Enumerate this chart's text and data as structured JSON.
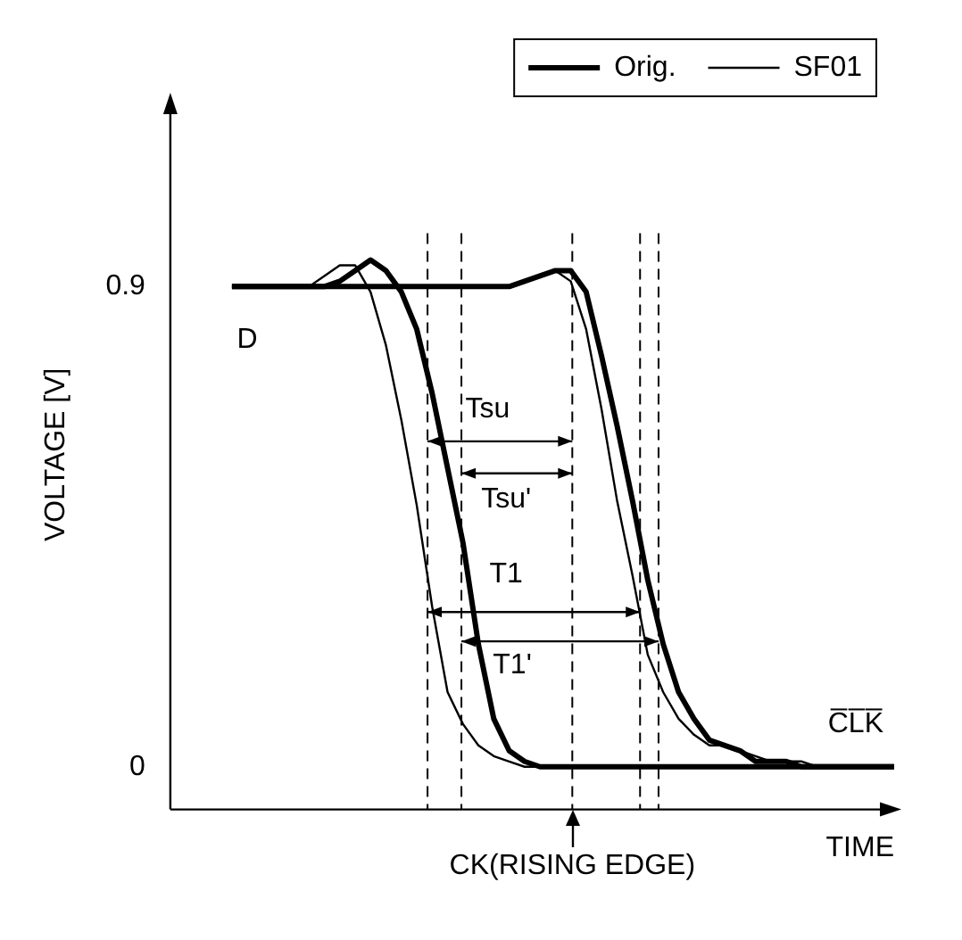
{
  "chart_data": {
    "type": "line",
    "xlabel": "TIME",
    "ylabel": "VOLTAGE [V]",
    "categories": [
      null,
      null,
      null,
      null,
      null,
      null,
      null,
      null,
      null,
      null,
      null,
      null,
      null,
      null,
      null,
      null,
      null,
      null,
      null,
      null,
      null,
      null,
      null,
      null,
      null,
      null,
      null,
      null,
      null,
      null,
      null,
      null,
      null,
      null,
      null,
      null,
      null,
      null,
      null,
      null,
      null,
      null,
      null,
      null,
      null,
      null,
      null,
      null
    ],
    "ylim": [
      -0.08,
      1.25
    ],
    "yticks": [
      0,
      {
        "value": 0.9,
        "label": "0.9"
      }
    ],
    "tick_labels": "y",
    "grid": false,
    "legend": "top right",
    "marker": "none",
    "series": [
      {
        "name": "Orig.",
        "color": "#000000",
        "values": [
          null,
          null,
          null,
          null,
          0.9,
          0.9,
          0.9,
          0.9,
          0.9,
          0.9,
          0.9,
          0.91,
          0.93,
          0.95,
          0.93,
          0.89,
          0.82,
          0.7,
          0.56,
          0.42,
          0.23,
          0.09,
          0.03,
          0.01,
          0,
          0,
          0,
          0,
          0,
          0,
          0,
          0,
          0,
          0,
          0,
          0,
          0,
          0,
          0,
          0,
          0,
          0,
          0,
          0,
          0,
          0,
          0,
          0
        ]
      },
      {
        "name": "SF01",
        "color": "#000000",
        "values": [
          null,
          null,
          null,
          null,
          0.9,
          0.9,
          0.9,
          0.9,
          0.9,
          0.9,
          0.92,
          0.94,
          0.94,
          0.89,
          0.79,
          0.65,
          0.49,
          0.3,
          0.14,
          0.08,
          0.04,
          0.02,
          0.01,
          0,
          0,
          0,
          0,
          0,
          0,
          0,
          0,
          0,
          0,
          0,
          0,
          0,
          0,
          0,
          0,
          0,
          0,
          0,
          0,
          0,
          0,
          0,
          0,
          0
        ]
      },
      {
        "color": "#000000",
        "values": [
          null,
          null,
          null,
          null,
          0.9,
          0.9,
          0.9,
          0.9,
          0.9,
          0.9,
          0.9,
          0.9,
          0.9,
          0.9,
          0.9,
          0.9,
          0.9,
          0.9,
          0.9,
          0.9,
          0.9,
          0.9,
          0.9,
          0.91,
          0.92,
          0.93,
          0.93,
          0.89,
          0.77,
          0.64,
          0.5,
          0.35,
          0.23,
          0.14,
          0.09,
          0.05,
          0.04,
          0.03,
          0.01,
          0.01,
          0.01,
          0,
          0,
          0,
          0,
          0,
          0,
          0
        ]
      },
      {
        "color": "#000000",
        "values": [
          null,
          null,
          null,
          null,
          0.9,
          0.9,
          0.9,
          0.9,
          0.9,
          0.9,
          0.9,
          0.9,
          0.9,
          0.9,
          0.9,
          0.9,
          0.9,
          0.9,
          0.9,
          0.9,
          0.9,
          0.9,
          0.9,
          0.91,
          0.92,
          0.93,
          0.91,
          0.82,
          0.67,
          0.5,
          0.36,
          0.21,
          0.14,
          0.09,
          0.06,
          0.04,
          0.04,
          0.03,
          0.02,
          0.01,
          0.01,
          0.01,
          0,
          0,
          0,
          0,
          0,
          0
        ]
      }
    ],
    "annotations": [
      "D",
      "Tsu",
      "Tsu'",
      "T1",
      "T1'",
      "C̅L̅K̅",
      "CK(RISING EDGE)"
    ]
  }
}
